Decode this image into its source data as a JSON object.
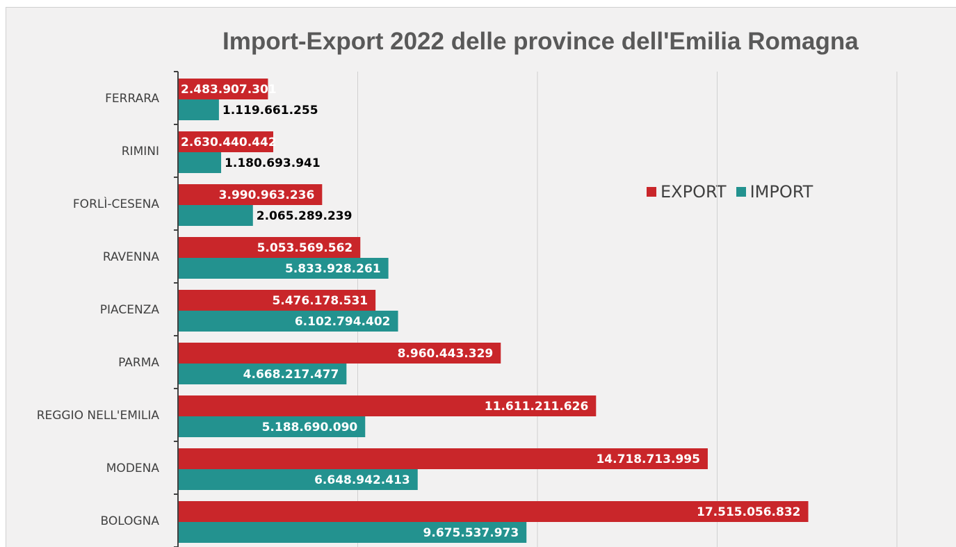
{
  "chart_data": {
    "type": "bar",
    "orientation": "horizontal",
    "title": "Import-Export 2022 delle province dell'Emilia Romagna",
    "categories": [
      "FERRARA",
      "RIMINI",
      "FORLÌ-CESENA",
      "RAVENNA",
      "PIACENZA",
      "PARMA",
      "REGGIO NELL'EMILIA",
      "MODENA",
      "BOLOGNA"
    ],
    "series": [
      {
        "name": "EXPORT",
        "color": "#c9262a",
        "values": [
          2483907301,
          2630440442,
          3990963236,
          5053569562,
          5476178531,
          8960443329,
          11611211626,
          14718713995,
          17515056832
        ],
        "labels": [
          "2.483.907.301",
          "2.630.440.442",
          "3.990.963.236",
          "5.053.569.562",
          "5.476.178.531",
          "8.960.443.329",
          "11.611.211.626",
          "14.718.713.995",
          "17.515.056.832"
        ]
      },
      {
        "name": "IMPORT",
        "color": "#23928f",
        "values": [
          1119661255,
          1180693941,
          2065289239,
          5833928261,
          6102794402,
          4668217477,
          5188690090,
          6648942413,
          9675537973
        ],
        "labels": [
          "1.119.661.255",
          "1.180.693.941",
          "2.065.289.239",
          "5.833.928.261",
          "6.102.794.402",
          "4.668.217.477",
          "5.188.690.090",
          "6.648.942.413",
          "9.675.537.973"
        ]
      }
    ],
    "xlim": [
      0,
      20000000000
    ],
    "grid": "vertical",
    "legend_position": "right"
  }
}
